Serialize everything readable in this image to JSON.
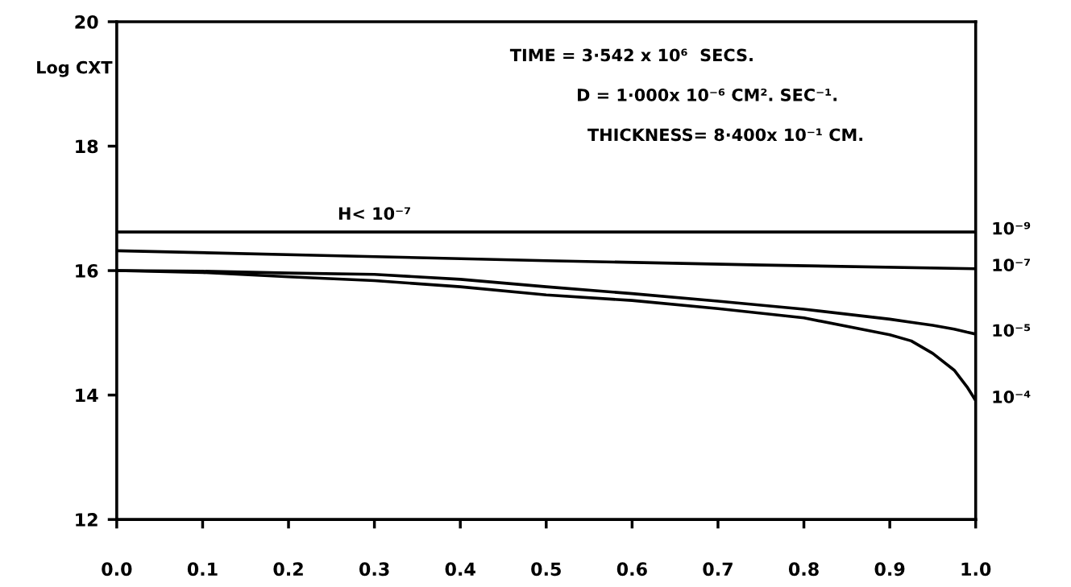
{
  "chart_data": {
    "type": "line",
    "ylabel": "Log CXT",
    "x": [
      0,
      0.1,
      0.2,
      0.3,
      0.4,
      0.5,
      0.6,
      0.7,
      0.8,
      0.9,
      0.925,
      0.95,
      0.975,
      0.99,
      1.0
    ],
    "series": [
      {
        "name": "10⁻⁹",
        "color": "#000000",
        "x": [
          0,
          1.0
        ],
        "values": [
          16.62,
          16.62
        ]
      },
      {
        "name": "10⁻⁷",
        "color": "#000000",
        "x": [
          0,
          0.25,
          0.5,
          0.75,
          1.0
        ],
        "values": [
          16.32,
          16.24,
          16.16,
          16.09,
          16.03
        ]
      },
      {
        "name": "10⁻⁵",
        "color": "#000000",
        "values": [
          16.0,
          15.99,
          15.96,
          15.94,
          15.86,
          15.74,
          15.63,
          15.51,
          15.38,
          15.22,
          15.17,
          15.12,
          15.06,
          15.01,
          14.98
        ]
      },
      {
        "name": "10⁻⁴",
        "color": "#000000",
        "values": [
          16.0,
          15.97,
          15.9,
          15.84,
          15.74,
          15.61,
          15.52,
          15.39,
          15.24,
          14.97,
          14.87,
          14.67,
          14.4,
          14.13,
          13.91
        ]
      }
    ],
    "xlim": [
      0,
      1.0
    ],
    "ylim": [
      12,
      20
    ],
    "xticks": [
      {
        "value": 0,
        "label": "0.0"
      },
      {
        "value": 0.1,
        "label": "0.1"
      },
      {
        "value": 0.2,
        "label": "0.2"
      },
      {
        "value": 0.3,
        "label": "0.3"
      },
      {
        "value": 0.4,
        "label": "0.4"
      },
      {
        "value": 0.5,
        "label": "0.5"
      },
      {
        "value": 0.6,
        "label": "0.6"
      },
      {
        "value": 0.7,
        "label": "0.7"
      },
      {
        "value": 0.8,
        "label": "0.8"
      },
      {
        "value": 0.9,
        "label": "0.9"
      },
      {
        "value": 1.0,
        "label": "1.0"
      }
    ],
    "yticks": [
      12,
      14,
      16,
      18,
      20
    ],
    "annotations": [
      "TIME = 3·542 x 10⁶  SECS.",
      "D = 1·000x 10⁻⁶ CM². SEC⁻¹.",
      "THICKNESS= 8·400x 10⁻¹ CM.",
      {
        "text": "H< 10⁻⁷",
        "x": 0.3,
        "y": 16.62
      }
    ],
    "grid": false,
    "legend": false,
    "marker": "none",
    "line_style": "solid"
  }
}
